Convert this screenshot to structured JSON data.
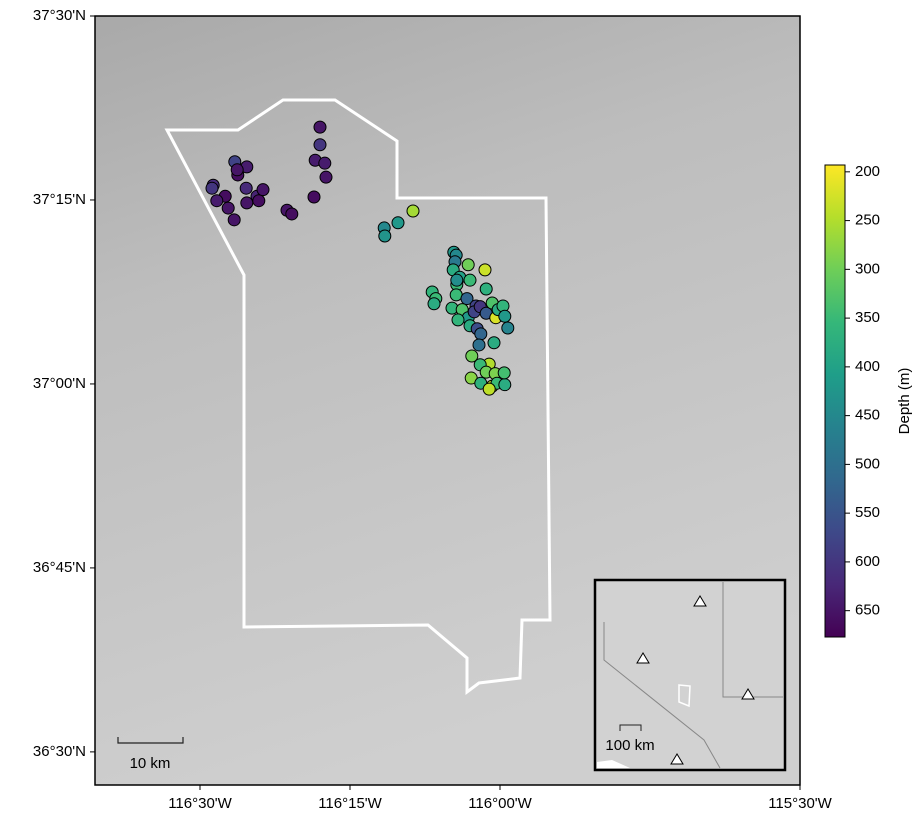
{
  "chart_data": {
    "type": "scatter",
    "xlim": [
      -116.675,
      -115.5
    ],
    "ylim": [
      36.455,
      37.5
    ],
    "xticks": [
      {
        "value": -116.5,
        "label": "116°30'W"
      },
      {
        "value": -116.25,
        "label": "116°15'W"
      },
      {
        "value": -116.0,
        "label": "116°00'W"
      },
      {
        "value": -115.5,
        "label": "115°30'W"
      }
    ],
    "yticks": [
      {
        "value": 37.5,
        "label": "37°30'N"
      },
      {
        "value": 37.25,
        "label": "37°15'N"
      },
      {
        "value": 37.0,
        "label": "37°00'N"
      },
      {
        "value": 36.75,
        "label": "36°45'N"
      },
      {
        "value": 36.5,
        "label": "36°30'N"
      }
    ],
    "x": [
      -116.478,
      -116.48,
      -116.458,
      -116.472,
      -116.453,
      -116.443,
      -116.442,
      -116.437,
      -116.422,
      -116.423,
      -116.422,
      -116.405,
      -116.402,
      -116.395,
      -116.355,
      -116.347,
      -116.31,
      -116.3,
      -116.3,
      -116.308,
      -116.292,
      -116.29,
      -116.438,
      -116.193,
      -116.192,
      -116.17,
      -116.145,
      -116.077,
      -116.073,
      -116.075,
      -116.053,
      -116.025,
      -116.078,
      -116.067,
      -116.05,
      -116.072,
      -116.023,
      -116.113,
      -116.107,
      -116.11,
      -116.073,
      -116.055,
      -116.04,
      -116.08,
      -116.063,
      -116.053,
      -116.043,
      -116.033,
      -116.023,
      -116.013,
      -116.007,
      -116.003,
      -115.995,
      -115.992,
      -115.987,
      -116.07,
      -116.05,
      -116.038,
      -116.032,
      -116.035,
      -116.01,
      -116.018,
      -116.047,
      -116.033,
      -116.023,
      -116.008,
      -116.013,
      -116.048,
      -116.032,
      -116.005,
      -115.992,
      -116.018,
      -115.993,
      -116.072
    ],
    "y": [
      37.27,
      37.266,
      37.255,
      37.249,
      37.239,
      37.223,
      37.302,
      37.284,
      37.295,
      37.266,
      37.246,
      37.255,
      37.249,
      37.264,
      37.236,
      37.231,
      37.254,
      37.349,
      37.325,
      37.304,
      37.3,
      37.281,
      37.291,
      37.212,
      37.201,
      37.219,
      37.235,
      37.179,
      37.175,
      37.166,
      37.162,
      37.155,
      37.155,
      37.145,
      37.141,
      37.135,
      37.129,
      37.125,
      37.116,
      37.109,
      37.121,
      37.116,
      37.106,
      37.103,
      37.101,
      37.09,
      37.098,
      37.105,
      37.096,
      37.11,
      37.09,
      37.101,
      37.106,
      37.092,
      37.076,
      37.087,
      37.079,
      37.075,
      37.068,
      37.053,
      37.056,
      37.027,
      37.038,
      37.026,
      37.016,
      37.014,
      36.997,
      37.008,
      37.001,
      37.001,
      36.999,
      36.993,
      37.015,
      37.141
    ],
    "color_values": [
      620,
      600,
      660,
      640,
      650,
      650,
      580,
      660,
      640,
      620,
      650,
      630,
      660,
      650,
      650,
      660,
      660,
      650,
      600,
      640,
      640,
      650,
      650,
      450,
      430,
      420,
      260,
      420,
      450,
      480,
      300,
      230,
      380,
      400,
      350,
      350,
      370,
      360,
      350,
      380,
      350,
      520,
      580,
      360,
      330,
      420,
      580,
      600,
      540,
      330,
      220,
      380,
      360,
      420,
      460,
      360,
      380,
      560,
      520,
      500,
      380,
      250,
      300,
      350,
      300,
      290,
      230,
      280,
      370,
      350,
      380,
      240,
      340,
      440
    ],
    "colorbar": {
      "label": "Depth (m)",
      "lim": [
        193,
        677
      ],
      "ticks": [
        200,
        250,
        300,
        350,
        400,
        450,
        500,
        550,
        600,
        650
      ],
      "colors": [
        "#fde725",
        "#b5de2b",
        "#6ece58",
        "#35b779",
        "#1f9e89",
        "#26828e",
        "#31688e",
        "#3e4989",
        "#482878",
        "#440154"
      ]
    },
    "scale_bar_label": "10 km",
    "inset_scale_label": "100 km"
  }
}
